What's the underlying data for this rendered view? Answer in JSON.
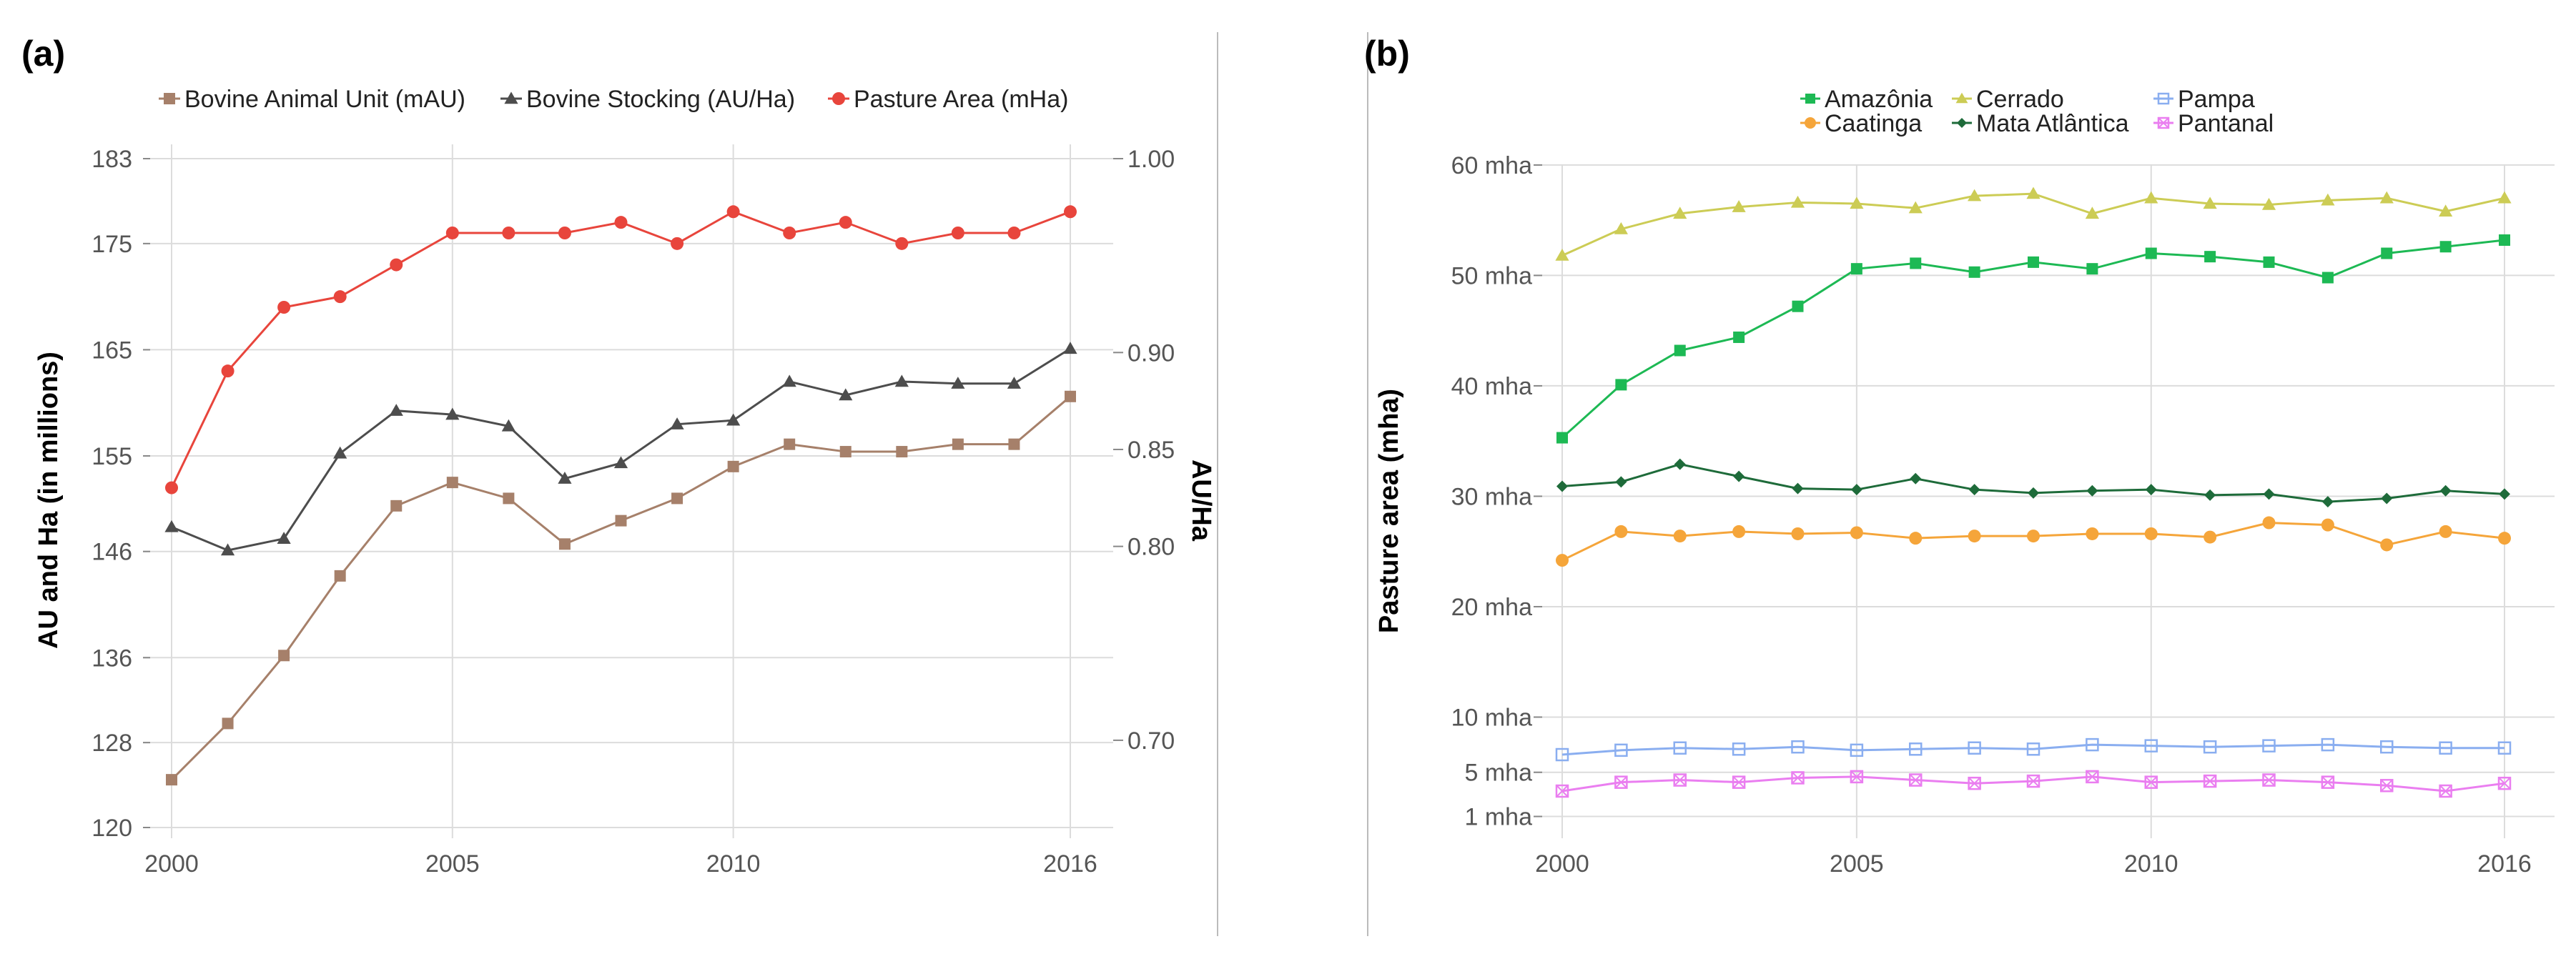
{
  "chart_data": [
    {
      "type": "line",
      "panel_label": "(a)",
      "ylabel_left": "AU and Ha (in millions)",
      "ylabel_right": "AU/Ha",
      "x": [
        2000,
        2001,
        2002,
        2003,
        2004,
        2005,
        2006,
        2007,
        2008,
        2009,
        2010,
        2011,
        2012,
        2013,
        2014,
        2015,
        2016
      ],
      "x_ticks": [
        "2000",
        "2005",
        "2010",
        "2016"
      ],
      "x_tick_values": [
        2000,
        2005,
        2010,
        2016
      ],
      "xlim": [
        2000,
        2016
      ],
      "y_left_ticks": [
        "183",
        "175",
        "165",
        "155",
        "146",
        "136",
        "128",
        "120"
      ],
      "y_left_tick_values": [
        183,
        175,
        165,
        155,
        146,
        136,
        128,
        120
      ],
      "ylim_left": [
        120,
        183
      ],
      "y_right_ticks": [
        "1.00",
        "0.90",
        "0.85",
        "0.80",
        "0.70"
      ],
      "y_right_tick_values": [
        1.0,
        0.9,
        0.85,
        0.8,
        0.7
      ],
      "ylim_right": [
        0.655,
        1.0
      ],
      "legend_position": "top",
      "series": [
        {
          "name": "Bovine Animal Unit (mAU)",
          "axis": "left",
          "color": "#a6806a",
          "marker": "square",
          "values": [
            124.5,
            129.8,
            136.2,
            143.7,
            150.3,
            152.5,
            151.0,
            146.7,
            148.9,
            151.0,
            154.0,
            156.1,
            155.4,
            155.4,
            156.1,
            156.1,
            160.6
          ]
        },
        {
          "name": "Bovine Stocking (AU/Ha)",
          "axis": "right",
          "color": "#4d4d4d",
          "marker": "triangle",
          "values": [
            0.81,
            0.798,
            0.804,
            0.848,
            0.87,
            0.868,
            0.862,
            0.835,
            0.843,
            0.863,
            0.865,
            0.885,
            0.878,
            0.885,
            0.884,
            0.884,
            0.902
          ]
        },
        {
          "name": "Pasture Area (mHa)",
          "axis": "left",
          "color": "#e8453c",
          "marker": "circle",
          "values": [
            152.0,
            163.0,
            169.0,
            170.0,
            173.0,
            176.0,
            176.0,
            176.0,
            177.0,
            175.0,
            178.0,
            176.0,
            177.0,
            175.0,
            176.0,
            176.0,
            178.0
          ]
        }
      ]
    },
    {
      "type": "line",
      "panel_label": "(b)",
      "ylabel": "Pasture area (mha)",
      "x": [
        2000,
        2001,
        2002,
        2003,
        2004,
        2005,
        2006,
        2007,
        2008,
        2009,
        2010,
        2011,
        2012,
        2013,
        2014,
        2015,
        2016
      ],
      "x_ticks": [
        "2000",
        "2005",
        "2010",
        "2016"
      ],
      "x_tick_values": [
        2000,
        2005,
        2010,
        2016
      ],
      "xlim": [
        2000,
        2016
      ],
      "y_ticks": [
        "60 mha",
        "50 mha",
        "40 mha",
        "30 mha",
        "20 mha",
        "10 mha",
        "5 mha",
        "1 mha"
      ],
      "y_tick_values": [
        60,
        50,
        40,
        30,
        20,
        10,
        5,
        1
      ],
      "ylim": [
        0,
        62
      ],
      "legend_position": "top",
      "series": [
        {
          "name": "Amazônia",
          "color": "#1db954",
          "marker": "square",
          "values": [
            35.3,
            40.1,
            43.2,
            44.4,
            47.2,
            50.6,
            51.1,
            50.3,
            51.2,
            50.6,
            52.0,
            51.7,
            51.2,
            49.8,
            52.0,
            52.6,
            53.2
          ]
        },
        {
          "name": "Caatinga",
          "color": "#f5a53a",
          "marker": "circle",
          "values": [
            24.2,
            26.8,
            26.4,
            26.8,
            26.6,
            26.7,
            26.2,
            26.4,
            26.4,
            26.6,
            26.6,
            26.3,
            27.6,
            27.4,
            25.6,
            26.8,
            26.2
          ]
        },
        {
          "name": "Cerrado",
          "color": "#cccc55",
          "marker": "triangle",
          "values": [
            51.8,
            54.2,
            55.6,
            56.2,
            56.6,
            56.5,
            56.1,
            57.2,
            57.4,
            55.6,
            57.0,
            56.5,
            56.4,
            56.8,
            57.0,
            55.8,
            57.0
          ]
        },
        {
          "name": "Mata Atlântica",
          "color": "#1e6b3a",
          "marker": "diamond",
          "values": [
            30.9,
            31.3,
            32.9,
            31.8,
            30.7,
            30.6,
            31.6,
            30.6,
            30.3,
            30.5,
            30.6,
            30.1,
            30.2,
            29.5,
            29.8,
            30.5,
            30.2
          ]
        },
        {
          "name": "Pampa",
          "color": "#8aaef0",
          "marker": "square-open",
          "values": [
            6.6,
            7.0,
            7.2,
            7.1,
            7.3,
            7.0,
            7.1,
            7.2,
            7.1,
            7.5,
            7.4,
            7.3,
            7.4,
            7.5,
            7.3,
            7.2,
            7.2
          ]
        },
        {
          "name": "Pantanal",
          "color": "#ea7ef0",
          "marker": "square-cross",
          "values": [
            3.3,
            4.1,
            4.3,
            4.1,
            4.5,
            4.6,
            4.3,
            4.0,
            4.2,
            4.6,
            4.1,
            4.2,
            4.3,
            4.1,
            3.8,
            3.3,
            4.0
          ]
        }
      ]
    }
  ]
}
